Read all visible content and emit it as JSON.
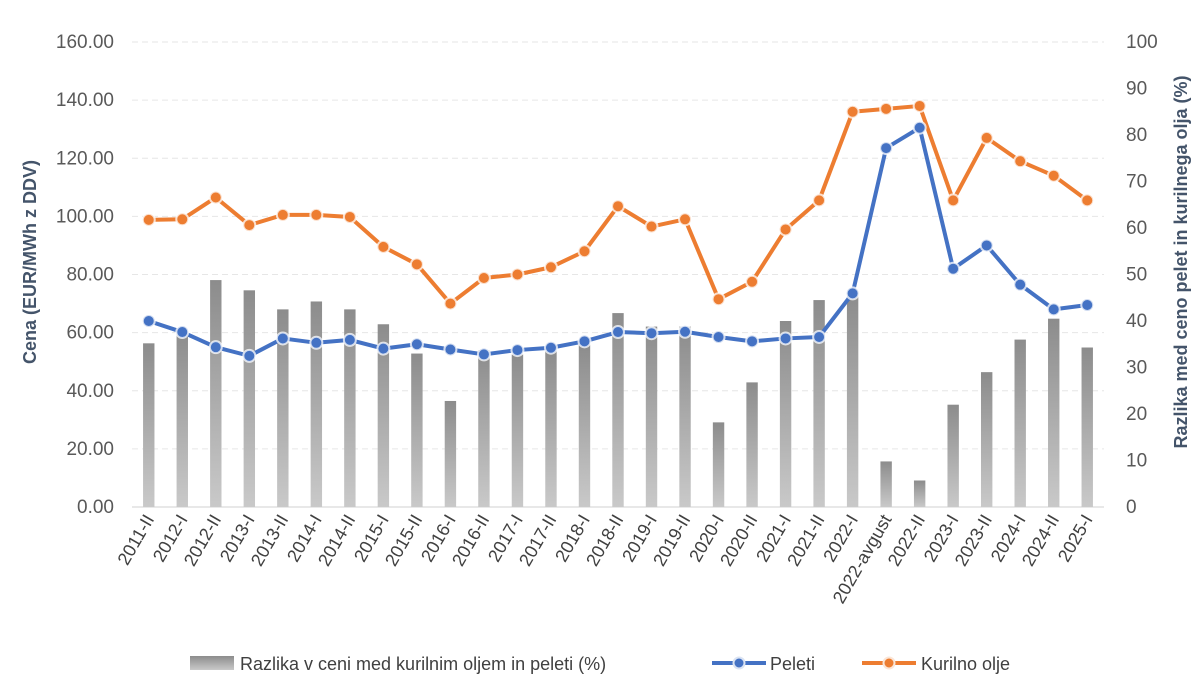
{
  "chart_data": {
    "type": "bar+line",
    "categories": [
      "2011-II",
      "2012-I",
      "2012-II",
      "2013-I",
      "2013-II",
      "2014-I",
      "2014-II",
      "2015-I",
      "2015-II",
      "2016-I",
      "2016-II",
      "2017-I",
      "2017-II",
      "2018-I",
      "2018-II",
      "2019-I",
      "2019-II",
      "2020-I",
      "2020-II",
      "2021-I",
      "2021-II",
      "2022-I",
      "2022-avgust",
      "2022-II",
      "2023-I",
      "2023-II",
      "2024-I",
      "2024-II",
      "2025-I"
    ],
    "series": [
      {
        "name": "Razlika v  ceni med kurilnim oljem in peleti (%)",
        "type": "bar",
        "axis": "right",
        "color": "#a6a6a6",
        "values": [
          35.2,
          38.0,
          48.8,
          46.6,
          42.5,
          44.2,
          42.5,
          39.3,
          33.0,
          22.8,
          33.7,
          32.8,
          33.6,
          35.0,
          41.7,
          38.8,
          38.8,
          18.2,
          26.8,
          40.0,
          44.5,
          45.5,
          9.8,
          5.7,
          22.0,
          29.0,
          36.0,
          40.5,
          34.3
        ]
      },
      {
        "name": "Peleti",
        "type": "line",
        "axis": "left",
        "color": "#4472C4",
        "values": [
          64.0,
          60.2,
          55.0,
          52.0,
          58.0,
          56.5,
          57.5,
          54.5,
          56.0,
          54.2,
          52.5,
          54.0,
          54.8,
          57.0,
          60.2,
          59.8,
          60.3,
          58.5,
          57.0,
          58.0,
          58.5,
          73.5,
          123.5,
          130.5,
          82.0,
          90.0,
          76.5,
          68.0,
          69.5
        ]
      },
      {
        "name": "Kurilno olje",
        "type": "line",
        "axis": "left",
        "color": "#ED7D31",
        "values": [
          98.8,
          99.0,
          106.5,
          97.0,
          100.5,
          100.5,
          99.8,
          89.5,
          83.5,
          70.0,
          78.8,
          80.0,
          82.5,
          88.0,
          103.5,
          96.5,
          99.0,
          71.5,
          77.5,
          95.5,
          105.5,
          136.0,
          137.0,
          138.0,
          105.5,
          127.0,
          119.0,
          114.0,
          105.5
        ]
      }
    ],
    "ylabel": "Cena (EUR/MWh z DDV)",
    "ylabel2": "Razlika med ceno pelet in kurilnega olja (%)",
    "ylim": [
      0,
      160
    ],
    "ylim2": [
      0,
      100
    ],
    "yticks": [
      "0.00",
      "20.00",
      "40.00",
      "60.00",
      "80.00",
      "100.00",
      "120.00",
      "140.00",
      "160.00"
    ],
    "yticks2": [
      "0",
      "10",
      "20",
      "30",
      "40",
      "50",
      "60",
      "70",
      "80",
      "90",
      "100"
    ],
    "grid": true,
    "legend_position": "bottom"
  }
}
